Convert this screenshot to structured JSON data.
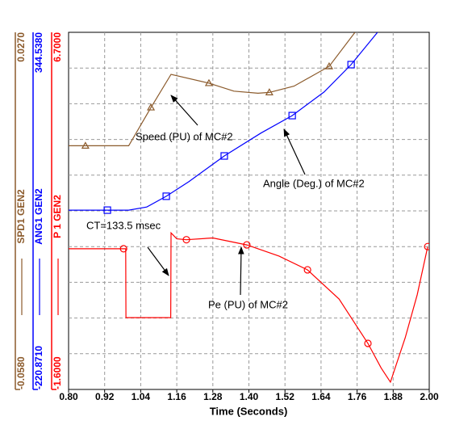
{
  "chart_data": {
    "type": "line",
    "x_label": "Time (Seconds)",
    "xlim": [
      0.8,
      2.0
    ],
    "xticks": [
      {
        "value": 0.8,
        "label": "0.80"
      },
      {
        "value": 0.92,
        "label": "0.92"
      },
      {
        "value": 1.04,
        "label": "1.04"
      },
      {
        "value": 1.16,
        "label": "1.16"
      },
      {
        "value": 1.28,
        "label": "1.28"
      },
      {
        "value": 1.4,
        "label": "1.40"
      },
      {
        "value": 1.52,
        "label": "1.52"
      },
      {
        "value": 1.64,
        "label": "1.64"
      },
      {
        "value": 1.76,
        "label": "1.76"
      },
      {
        "value": 1.88,
        "label": "1.88"
      },
      {
        "value": 2.0,
        "label": "2.00"
      }
    ],
    "grid": true,
    "series": [
      {
        "name": "SPD1 GEN2",
        "color": "#8b5a2b",
        "marker": "triangle",
        "ylim": [
          -0.058,
          0.027
        ],
        "yticks": [
          {
            "value": -0.058,
            "label": "-0.0580"
          },
          {
            "value": 0.027,
            "label": "0.0270"
          }
        ],
        "x": [
          0.8,
          1.0,
          1.074,
          1.141,
          1.267,
          1.35,
          1.43,
          1.468,
          1.55,
          1.667,
          1.753
        ],
        "values": [
          0.0,
          0.0,
          0.0091,
          0.017,
          0.0149,
          0.013,
          0.0125,
          0.0127,
          0.0142,
          0.0189,
          0.027
        ],
        "marker_x": [
          0.856,
          1.074,
          1.267,
          1.468,
          1.667
        ],
        "marker_values": [
          0.0,
          0.0091,
          0.0149,
          0.0127,
          0.0189
        ]
      },
      {
        "name": "ANG1 GEN2",
        "color": "#0000ff",
        "marker": "square",
        "ylim": [
          -220.871,
          344.538
        ],
        "yticks": [
          {
            "value": -220.871,
            "label": "-220.8710"
          },
          {
            "value": 344.538,
            "label": "344.5380"
          }
        ],
        "x": [
          0.8,
          1.0,
          1.06,
          1.125,
          1.2,
          1.318,
          1.44,
          1.544,
          1.65,
          1.74,
          1.828
        ],
        "values": [
          63,
          63,
          68,
          85,
          108,
          148.8,
          185,
          212.7,
          250,
          293.4,
          344.5
        ],
        "marker_x": [
          0.929,
          1.125,
          1.318,
          1.544,
          1.74
        ],
        "marker_values": [
          63,
          85,
          148.8,
          212.7,
          293.4
        ]
      },
      {
        "name": "P 1 GEN2",
        "color": "#ff0000",
        "marker": "circle",
        "ylim": [
          -1.6,
          6.7
        ],
        "yticks": [
          {
            "value": -1.6,
            "label": "-1.6000"
          },
          {
            "value": 6.7,
            "label": "6.7000"
          }
        ],
        "x": [
          0.8,
          0.99,
          0.991,
          1.14,
          1.141,
          1.16,
          1.192,
          1.28,
          1.393,
          1.5,
          1.595,
          1.7,
          1.796,
          1.84,
          1.871,
          1.92,
          1.96,
          1.995
        ],
        "values": [
          1.67,
          1.67,
          0.07,
          0.07,
          2.04,
          1.9,
          1.88,
          1.92,
          1.76,
          1.5,
          1.18,
          0.5,
          -0.53,
          -1.1,
          -1.43,
          -0.4,
          0.6,
          1.72
        ],
        "marker_x": [
          0.983,
          1.192,
          1.393,
          1.595,
          1.796,
          1.995
        ],
        "marker_values": [
          1.67,
          1.88,
          1.76,
          1.18,
          -0.53,
          1.72
        ]
      }
    ],
    "annotations": [
      {
        "text": "Speed (PU) of MC#2"
      },
      {
        "text": "Angle (Deg.) of MC#2"
      },
      {
        "text": "CT=133.5 msec"
      },
      {
        "text": "Pe (PU) of MC#2"
      }
    ]
  }
}
